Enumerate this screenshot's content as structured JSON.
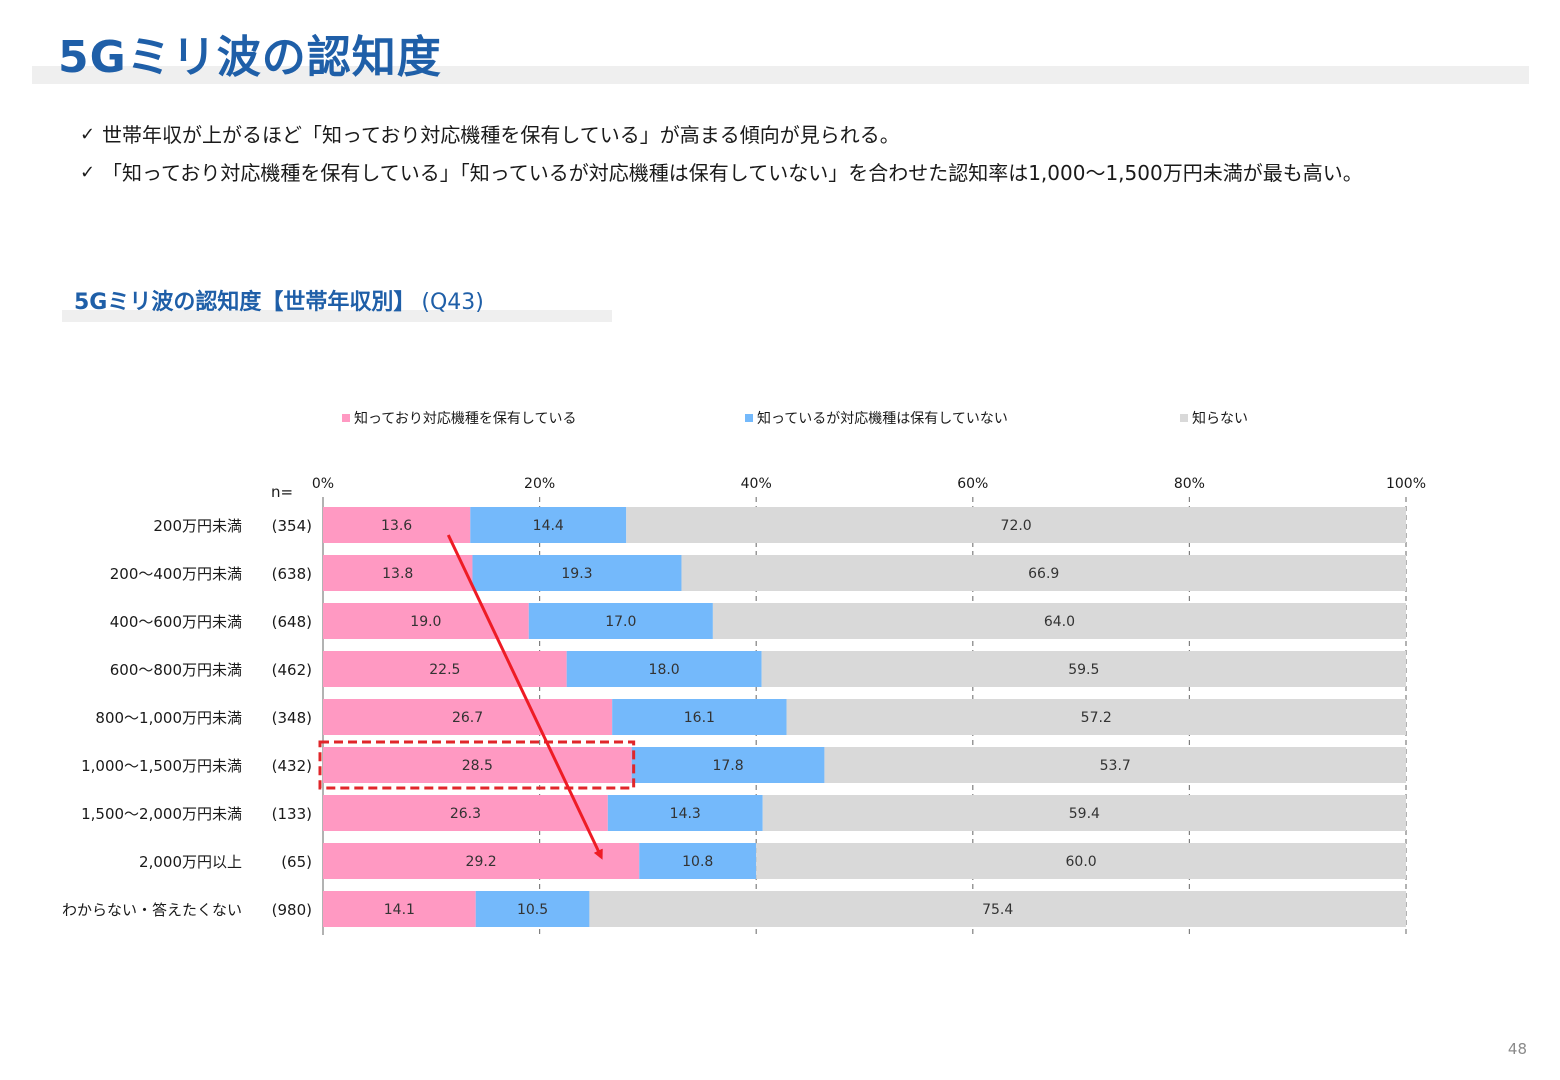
{
  "page": {
    "title": "5Gミリ波の認知度",
    "bullets": [
      "世帯年収が上がるほど「知っており対応機種を保有している」が高まる傾向が見られる。",
      "「知っており対応機種を保有している」「知っているが対応機種は保有していない」を合わせた認知率は1,000～1,500万円未満が最も高い。"
    ],
    "subtitle_main": "5Gミリ波の認知度【世帯年収別】",
    "subtitle_q": "(Q43)",
    "page_number": "48",
    "check_icon": "✓"
  },
  "colors": {
    "pink": "#ff99c2",
    "blue": "#74b9fb",
    "gray": "#d9d9d9",
    "title_blue": "#1f5fa8",
    "highlight_red": "#e0262a",
    "arrow_red": "#ee1c25"
  },
  "chart_data": {
    "type": "bar",
    "orientation": "horizontal",
    "stacked": true,
    "percent_scale": true,
    "n_label": "n=",
    "categories": [
      "200万円未満",
      "200～400万円未満",
      "400～600万円未満",
      "600～800万円未満",
      "800～1,000万円未満",
      "1,000～1,500万円未満",
      "1,500～2,000万円未満",
      "2,000万円以上",
      "わからない・答えたくない"
    ],
    "n": [
      "(354)",
      "(638)",
      "(648)",
      "(462)",
      "(348)",
      "(432)",
      "(133)",
      "(65)",
      "(980)"
    ],
    "series": [
      {
        "name": "知っており対応機種を保有している",
        "values": [
          13.6,
          13.8,
          19.0,
          22.5,
          26.7,
          28.5,
          26.3,
          29.2,
          14.1
        ]
      },
      {
        "name": "知っているが対応機種は保有していない",
        "values": [
          14.4,
          19.3,
          17.0,
          18.0,
          16.1,
          17.8,
          14.3,
          10.8,
          10.5
        ]
      },
      {
        "name": "知らない",
        "values": [
          72.0,
          66.9,
          64.0,
          59.5,
          57.2,
          53.7,
          59.4,
          60.0,
          75.4
        ]
      }
    ],
    "x_ticks": [
      "0%",
      "20%",
      "40%",
      "60%",
      "80%",
      "100%"
    ],
    "xlim": [
      0,
      100
    ],
    "grid": true,
    "legend": "top",
    "highlight_category": "1,000～1,500万円未満",
    "trend_arrow": {
      "from_category": "200万円未満",
      "to_category": "2,000万円以上"
    }
  }
}
